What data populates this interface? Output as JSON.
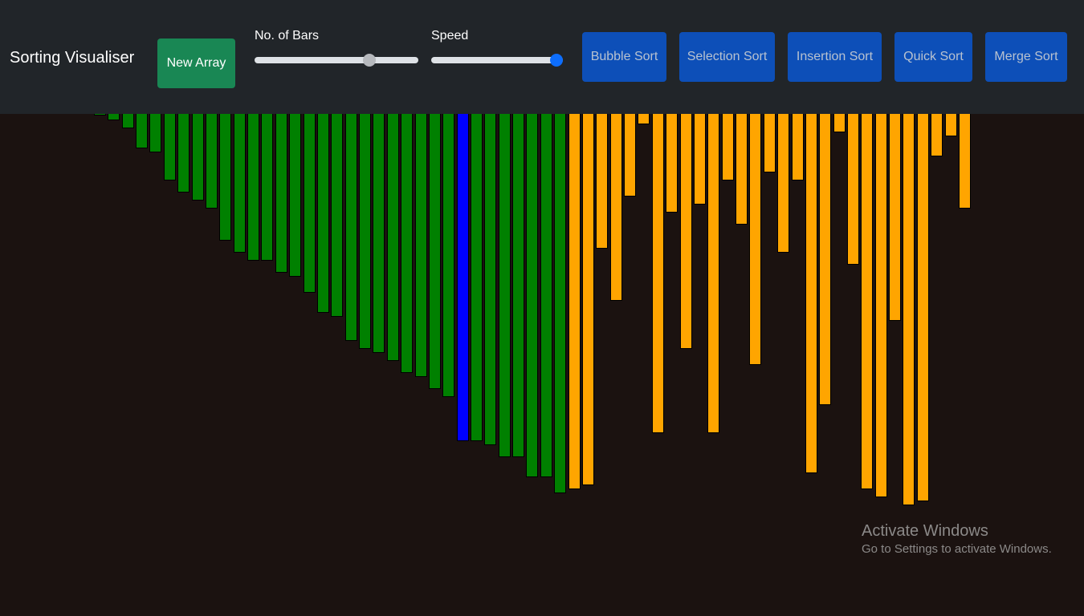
{
  "navbar": {
    "brand": "Sorting Visualiser",
    "new_array_label": "New Array",
    "bars_label": "No. of Bars",
    "speed_label": "Speed",
    "algorithms": [
      "Bubble Sort",
      "Selection Sort",
      "Insertion Sort",
      "Quick Sort",
      "Merge Sort"
    ]
  },
  "sliders": {
    "bars": {
      "value_fraction": 0.72,
      "thumb_color": "#b6b9bd"
    },
    "speed": {
      "value_fraction": 1.0,
      "thumb_color": "#0d6efd"
    }
  },
  "colors": {
    "sorted": "#008000",
    "active": "#0000ff",
    "unsorted": "#ffa500",
    "background": "#1b1210"
  },
  "array": {
    "max_value": 626,
    "active_index": 26,
    "sorted_count": 34,
    "values": [
      2,
      8,
      18,
      43,
      48,
      83,
      98,
      108,
      118,
      158,
      173,
      183,
      183,
      198,
      203,
      223,
      248,
      253,
      283,
      293,
      298,
      308,
      323,
      328,
      343,
      353,
      408,
      408,
      413,
      428,
      428,
      453,
      453,
      473,
      468,
      463,
      168,
      233,
      103,
      13,
      398,
      123,
      293,
      113,
      398,
      83,
      138,
      313,
      73,
      173,
      83,
      448,
      363,
      23,
      188,
      468,
      478,
      258,
      488,
      483,
      53,
      28,
      118
    ]
  },
  "watermark": {
    "title": "Activate Windows",
    "subtitle": "Go to Settings to activate Windows."
  }
}
